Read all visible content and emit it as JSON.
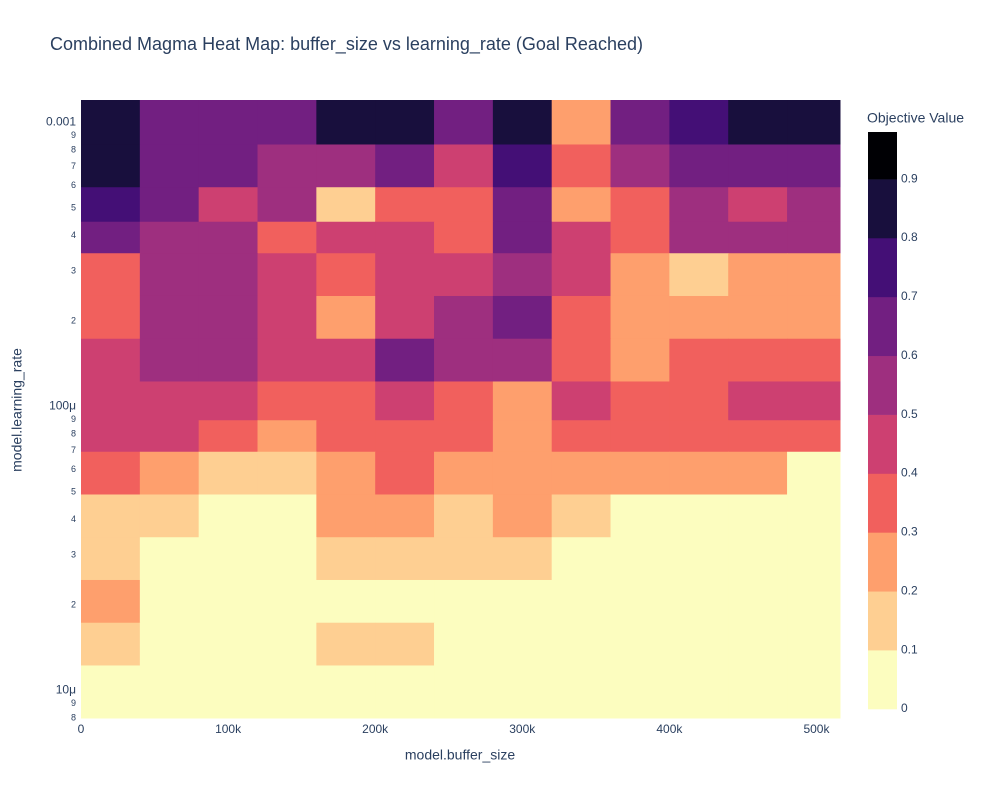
{
  "chart_data": {
    "type": "contour",
    "title": "Combined Magma Heat Map: buffer_size vs learning_rate (Goal Reached)",
    "x_label": "model.buffer_size",
    "y_label": "model.learning_rate",
    "x": [
      20000,
      60000,
      100000,
      140000,
      180000,
      220000,
      260000,
      300000,
      340000,
      380000,
      420000,
      460000,
      500000
    ],
    "y": [
      0.001,
      0.0007,
      0.0005,
      0.0004,
      0.0003,
      0.0002,
      0.00015,
      0.0001,
      8e-05,
      6e-05,
      4e-05,
      3e-05,
      2e-05,
      1.5e-05,
      1e-05
    ],
    "z": [
      [
        0.85,
        0.65,
        0.65,
        0.65,
        0.85,
        0.85,
        0.65,
        0.85,
        0.25,
        0.65,
        0.75,
        0.85,
        0.85
      ],
      [
        0.85,
        0.65,
        0.65,
        0.55,
        0.55,
        0.65,
        0.45,
        0.75,
        0.35,
        0.55,
        0.65,
        0.65,
        0.65
      ],
      [
        0.75,
        0.65,
        0.45,
        0.55,
        0.15,
        0.35,
        0.35,
        0.65,
        0.25,
        0.35,
        0.55,
        0.45,
        0.55
      ],
      [
        0.65,
        0.55,
        0.55,
        0.35,
        0.45,
        0.45,
        0.35,
        0.65,
        0.45,
        0.35,
        0.55,
        0.55,
        0.55
      ],
      [
        0.35,
        0.55,
        0.55,
        0.45,
        0.35,
        0.45,
        0.45,
        0.55,
        0.45,
        0.25,
        0.15,
        0.25,
        0.25
      ],
      [
        0.35,
        0.55,
        0.55,
        0.45,
        0.25,
        0.45,
        0.55,
        0.65,
        0.35,
        0.25,
        0.25,
        0.25,
        0.25
      ],
      [
        0.45,
        0.55,
        0.55,
        0.45,
        0.45,
        0.65,
        0.55,
        0.55,
        0.35,
        0.25,
        0.35,
        0.35,
        0.35
      ],
      [
        0.45,
        0.45,
        0.45,
        0.35,
        0.35,
        0.45,
        0.35,
        0.25,
        0.45,
        0.35,
        0.35,
        0.45,
        0.45
      ],
      [
        0.45,
        0.45,
        0.35,
        0.25,
        0.35,
        0.35,
        0.35,
        0.25,
        0.35,
        0.35,
        0.35,
        0.35,
        0.35
      ],
      [
        0.35,
        0.25,
        0.15,
        0.15,
        0.25,
        0.35,
        0.25,
        0.25,
        0.25,
        0.25,
        0.25,
        0.25,
        0.05
      ],
      [
        0.15,
        0.15,
        0.05,
        0.05,
        0.25,
        0.25,
        0.15,
        0.25,
        0.15,
        0.05,
        0.05,
        0.05,
        0.05
      ],
      [
        0.15,
        0.05,
        0.05,
        0.05,
        0.15,
        0.15,
        0.15,
        0.15,
        0.05,
        0.05,
        0.05,
        0.05,
        0.05
      ],
      [
        0.25,
        0.05,
        0.05,
        0.05,
        0.05,
        0.05,
        0.05,
        0.05,
        0.05,
        0.05,
        0.05,
        0.05,
        0.05
      ],
      [
        0.15,
        0.05,
        0.05,
        0.05,
        0.15,
        0.15,
        0.05,
        0.05,
        0.05,
        0.05,
        0.05,
        0.05,
        0.05
      ],
      [
        0.05,
        0.05,
        0.05,
        0.05,
        0.05,
        0.05,
        0.05,
        0.05,
        0.05,
        0.05,
        0.05,
        0.05,
        0.05
      ]
    ],
    "xlim": [
      0,
      516000
    ],
    "xticks": [
      0,
      {
        "value": 100000,
        "label": "100k"
      },
      {
        "value": 200000,
        "label": "200k"
      },
      {
        "value": 300000,
        "label": "300k"
      },
      {
        "value": 400000,
        "label": "400k"
      },
      {
        "value": 500000,
        "label": "500k"
      }
    ],
    "ylim": [
      8e-06,
      0.0012
    ],
    "log_y": true,
    "yticks": [
      0.001,
      {
        "value": 0.0009,
        "label": "9"
      },
      {
        "value": 0.0008,
        "label": "8"
      },
      {
        "value": 0.0007,
        "label": "7"
      },
      {
        "value": 0.0006,
        "label": "6"
      },
      {
        "value": 0.0005,
        "label": "5"
      },
      {
        "value": 0.0004,
        "label": "4"
      },
      {
        "value": 0.0003,
        "label": "3"
      },
      {
        "value": 0.0002,
        "label": "2"
      },
      {
        "value": 0.0001,
        "label": "100μ"
      },
      {
        "value": 9e-05,
        "label": "9"
      },
      {
        "value": 8e-05,
        "label": "8"
      },
      {
        "value": 7e-05,
        "label": "7"
      },
      {
        "value": 6e-05,
        "label": "6"
      },
      {
        "value": 5e-05,
        "label": "5"
      },
      {
        "value": 4e-05,
        "label": "4"
      },
      {
        "value": 3e-05,
        "label": "3"
      },
      {
        "value": 2e-05,
        "label": "2"
      },
      {
        "value": 1e-05,
        "label": "10μ"
      },
      {
        "value": 9e-06,
        "label": "9"
      },
      {
        "value": 8e-06,
        "label": "8"
      }
    ],
    "colorbar_title": "Objective Value",
    "zlim": [
      0,
      0.98
    ],
    "zticks": [
      0,
      0.1,
      0.2,
      0.3,
      0.4,
      0.5,
      0.6,
      0.7,
      0.8,
      0.9
    ],
    "colors": [
      "#fcfdbf",
      "#fecf92",
      "#fe9f6d",
      "#f1605d",
      "#cd4071",
      "#9e2f7f",
      "#721f81",
      "#440f76",
      "#180f3d",
      "#000004"
    ]
  }
}
